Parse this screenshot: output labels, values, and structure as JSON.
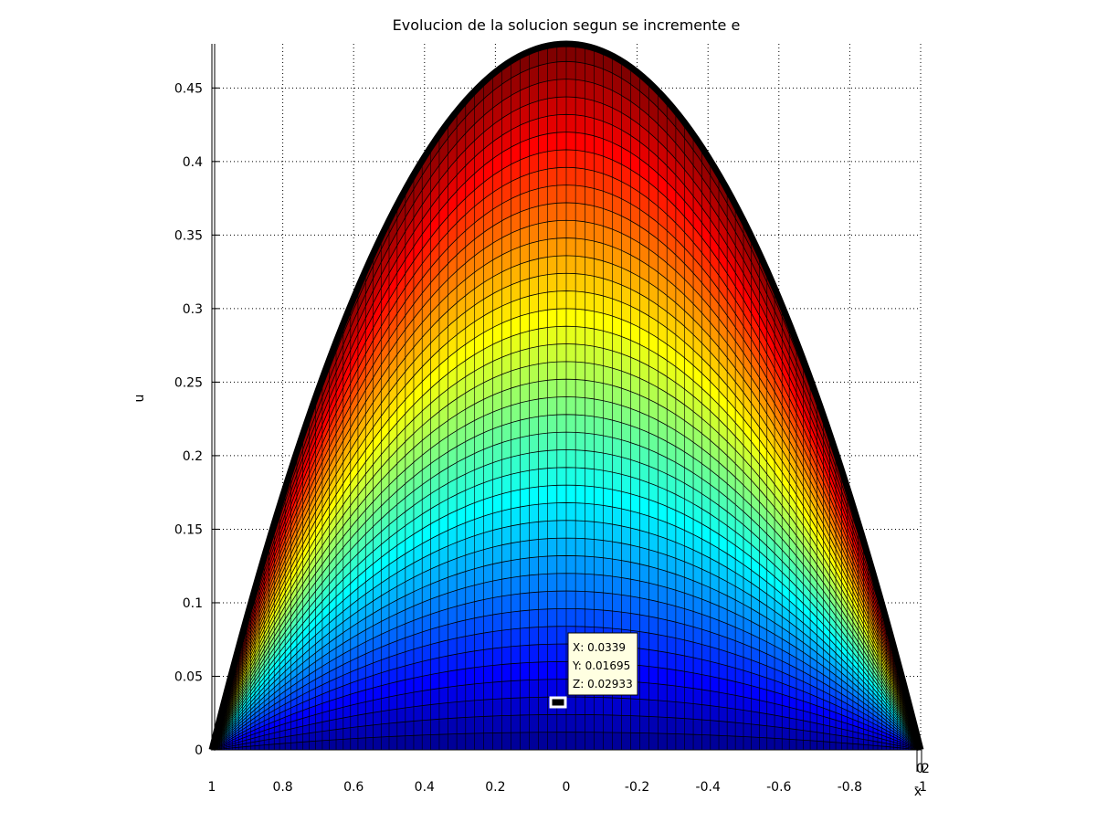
{
  "chart_data": {
    "type": "surface",
    "title": "Evolucion de la solucion segun se incremente e",
    "xlabel": "x",
    "ylabel": "u",
    "xlim": [
      1,
      -1
    ],
    "ylim": [
      0,
      0.48
    ],
    "x_ticks": [
      1,
      0.8,
      0.6,
      0.4,
      0.2,
      0,
      -0.2,
      -0.4,
      -0.6,
      -0.8,
      -1
    ],
    "x_tick_labels": [
      "1",
      "0.8",
      "0.6",
      "0.4",
      "0.2",
      "0",
      "-0.2",
      "-0.4",
      "-0.6",
      "-0.8",
      "-1"
    ],
    "y_ticks": [
      0,
      0.05,
      0.1,
      0.15,
      0.2,
      0.25,
      0.3,
      0.35,
      0.4,
      0.45
    ],
    "y_tick_labels": [
      "0",
      "0.05",
      "0.1",
      "0.15",
      "0.2",
      "0.25",
      "0.3",
      "0.35",
      "0.4",
      "0.45"
    ],
    "depth_tick_labels": [
      "0",
      "2"
    ],
    "peak_u": 0.48,
    "grid": true,
    "colormap": "jet",
    "datatip": {
      "x_line": "X: 0.0339",
      "y_line": "Y: 0.01695",
      "z_line": "Z: 0.02933"
    }
  }
}
